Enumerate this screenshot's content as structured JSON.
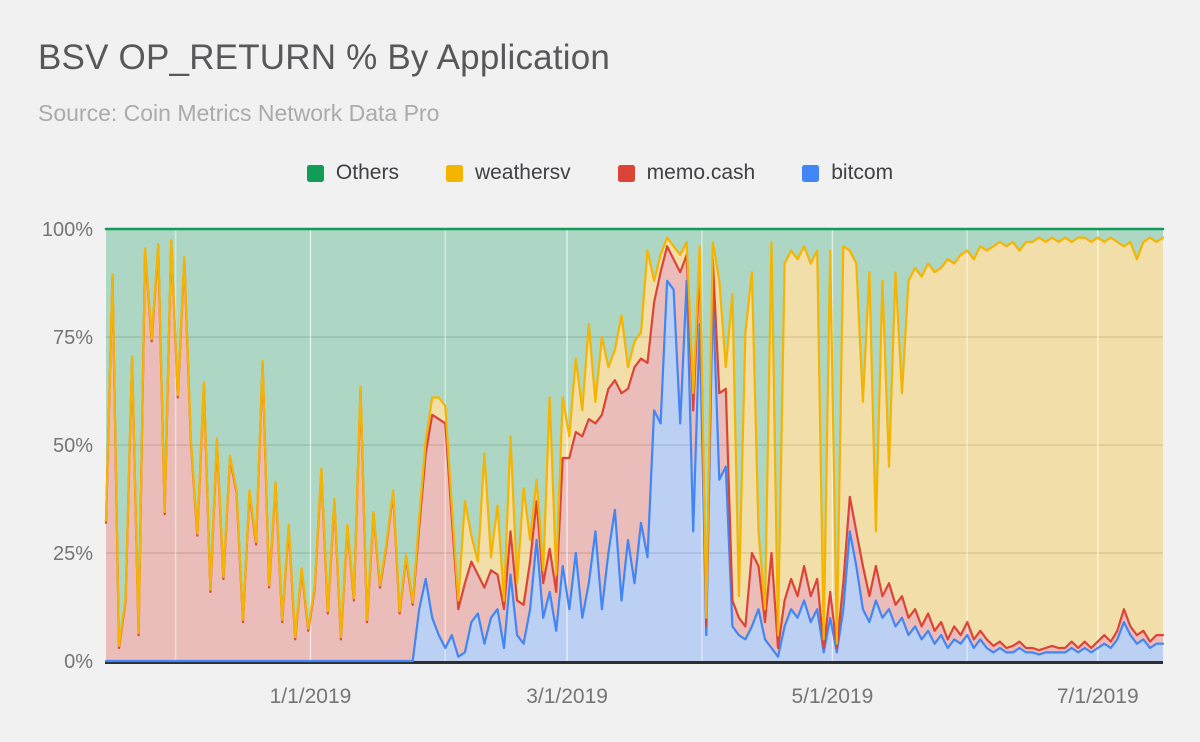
{
  "header": {
    "title": "BSV OP_RETURN % By Application",
    "source": "Source: Coin Metrics Network Data Pro"
  },
  "colors": {
    "background": "#f1f1f2",
    "others_green": "#0F9D58",
    "weathersv_yellow": "#F4B400",
    "memocash_red": "#DB4437",
    "bitcom_blue": "#4285F4",
    "axis_label": "#757575",
    "h_gridline": "#d8d8d8",
    "x_axis_line": "#2e2e2e"
  },
  "chart_data": {
    "type": "area",
    "subtype": "100pct-stacked-area",
    "title": "BSV OP_RETURN % By Application",
    "xlabel": "",
    "ylabel": "",
    "y_axis": {
      "min": 0,
      "max": 100,
      "format": "percent",
      "grid": true
    },
    "y_ticks": [
      {
        "label": "0%",
        "value": 0
      },
      {
        "label": "25%",
        "value": 25
      },
      {
        "label": "50%",
        "value": 50
      },
      {
        "label": "75%",
        "value": 75
      },
      {
        "label": "100%",
        "value": 100
      }
    ],
    "x_domain_days": 243,
    "x_ticks": [
      {
        "label": "1/1/2019",
        "day": 47
      },
      {
        "label": "3/1/2019",
        "day": 106
      },
      {
        "label": "5/1/2019",
        "day": 167
      },
      {
        "label": "7/1/2019",
        "day": 228
      }
    ],
    "x_minor_gridline_days": [
      16,
      78,
      137,
      198
    ],
    "legend": [
      {
        "label": "Others",
        "color": "#0F9D58"
      },
      {
        "label": "weathersv",
        "color": "#F4B400"
      },
      {
        "label": "memo.cash",
        "color": "#DB4437"
      },
      {
        "label": "bitcom",
        "color": "#4285F4"
      }
    ],
    "legend_position": "top-center",
    "fill_opacity": 0.3,
    "stack_order_bottom_to_top": [
      "bitcom",
      "memo.cash",
      "weathersv",
      "Others"
    ],
    "others_definition": "Others = 100 - (bitcom + memo.cash + weathersv)",
    "series": [
      {
        "name": "bitcom",
        "color": "#4285F4",
        "values": [
          0,
          0,
          0,
          0,
          0,
          0,
          0,
          0,
          0,
          0,
          0,
          0,
          0,
          0,
          0,
          0,
          0,
          0,
          0,
          0,
          0,
          0,
          0,
          0,
          0,
          0,
          0,
          0,
          0,
          0,
          0,
          0,
          0,
          0,
          0,
          0,
          0,
          0,
          0,
          0,
          0,
          0,
          0,
          0,
          0,
          0,
          0,
          0,
          12,
          19,
          10,
          6,
          3,
          6,
          1,
          2,
          9,
          11,
          4,
          10,
          12,
          3,
          20,
          6,
          4,
          12,
          28,
          10,
          16,
          7,
          22,
          12,
          25,
          10,
          18,
          30,
          12,
          25,
          35,
          14,
          28,
          18,
          32,
          24,
          58,
          55,
          88,
          86,
          55,
          88,
          30,
          78,
          6,
          85,
          42,
          45,
          8,
          6,
          5,
          8,
          12,
          5,
          3,
          1,
          8,
          12,
          10,
          14,
          9,
          12,
          2,
          10,
          2,
          12,
          30,
          22,
          12,
          9,
          14,
          10,
          12,
          8,
          10,
          6,
          8,
          5,
          7,
          4,
          6,
          3,
          5,
          4,
          6,
          3,
          5,
          3,
          2,
          3,
          2,
          2,
          3,
          2,
          2,
          1.5,
          2,
          2,
          2,
          2,
          3,
          2,
          3,
          2,
          3,
          4,
          3,
          5,
          9,
          6,
          4,
          5,
          3,
          4,
          4
        ]
      },
      {
        "name": "memo.cash",
        "color": "#DB4437",
        "values": [
          32,
          89,
          3,
          14,
          70,
          6,
          95,
          74,
          96,
          34,
          97,
          61,
          93,
          51,
          29,
          64,
          16,
          51,
          19,
          47,
          39,
          9,
          39,
          27,
          69,
          17,
          41,
          9,
          31,
          5,
          21,
          7,
          17,
          44,
          11,
          37,
          5,
          31,
          14,
          63,
          9,
          34,
          17,
          27,
          39,
          11,
          24,
          13,
          19,
          29,
          47,
          50,
          52,
          27,
          11,
          16,
          14,
          9,
          13,
          11,
          8,
          9,
          10,
          8,
          9,
          11,
          9,
          8,
          10,
          9,
          25,
          35,
          28,
          42,
          38,
          25,
          45,
          38,
          30,
          48,
          35,
          50,
          38,
          45,
          25,
          35,
          8,
          7,
          35,
          6,
          28,
          14,
          2,
          8,
          20,
          18,
          6,
          4,
          3,
          17,
          10,
          4,
          22,
          2,
          6,
          7,
          5,
          8,
          6,
          7,
          1,
          6,
          1,
          6,
          8,
          8,
          10,
          6,
          8,
          5,
          6,
          5,
          5,
          4,
          4,
          3,
          4,
          3,
          3,
          2,
          3,
          2,
          3,
          2,
          2,
          2,
          1.5,
          1.5,
          1,
          1.5,
          1.5,
          1,
          1,
          1,
          1,
          1.5,
          1,
          1,
          1.5,
          1,
          1.5,
          1,
          1.5,
          2,
          1.5,
          2,
          3,
          2,
          2,
          2,
          1.5,
          2,
          2
        ]
      },
      {
        "name": "weathersv",
        "color": "#F4B400",
        "values": [
          0.5,
          0.5,
          0.5,
          0.5,
          0.5,
          0.5,
          0.5,
          0.5,
          0.5,
          0.5,
          0.5,
          0.5,
          0.5,
          0.5,
          0.5,
          0.5,
          0.5,
          0.5,
          0.5,
          0.5,
          0.5,
          0.5,
          0.5,
          0.5,
          0.5,
          0.5,
          0.5,
          0.5,
          0.5,
          0.5,
          0.5,
          0.5,
          0.5,
          0.5,
          0.5,
          0.5,
          0.5,
          0.5,
          0.5,
          0.5,
          0.5,
          0.5,
          0.5,
          0.5,
          0.5,
          0.5,
          0.5,
          0.5,
          2,
          3,
          4,
          5,
          4,
          3,
          2,
          19,
          6,
          3,
          31,
          3,
          16,
          2,
          22,
          4,
          27,
          5,
          5,
          3,
          35,
          4,
          14,
          5,
          17,
          6,
          22,
          5,
          18,
          5,
          7,
          18,
          5,
          6,
          6,
          26,
          5,
          4,
          2,
          3,
          4,
          3,
          4,
          4,
          2,
          4,
          26,
          5,
          71,
          5,
          68,
          65,
          8,
          3,
          72,
          3,
          78,
          76,
          78,
          74,
          77,
          76,
          2,
          79,
          1,
          78,
          57,
          62,
          38,
          75,
          8,
          73,
          27,
          77,
          47,
          78,
          79,
          81,
          81,
          83,
          82,
          88,
          84,
          88,
          86,
          88,
          89,
          90,
          92.5,
          92.5,
          93,
          93.5,
          90.5,
          94,
          94,
          95.5,
          94,
          94.5,
          94,
          95,
          92.5,
          95,
          93.5,
          94,
          93.5,
          91,
          93.5,
          90,
          84,
          89,
          87,
          90,
          93.5,
          91,
          92
        ]
      }
    ]
  }
}
